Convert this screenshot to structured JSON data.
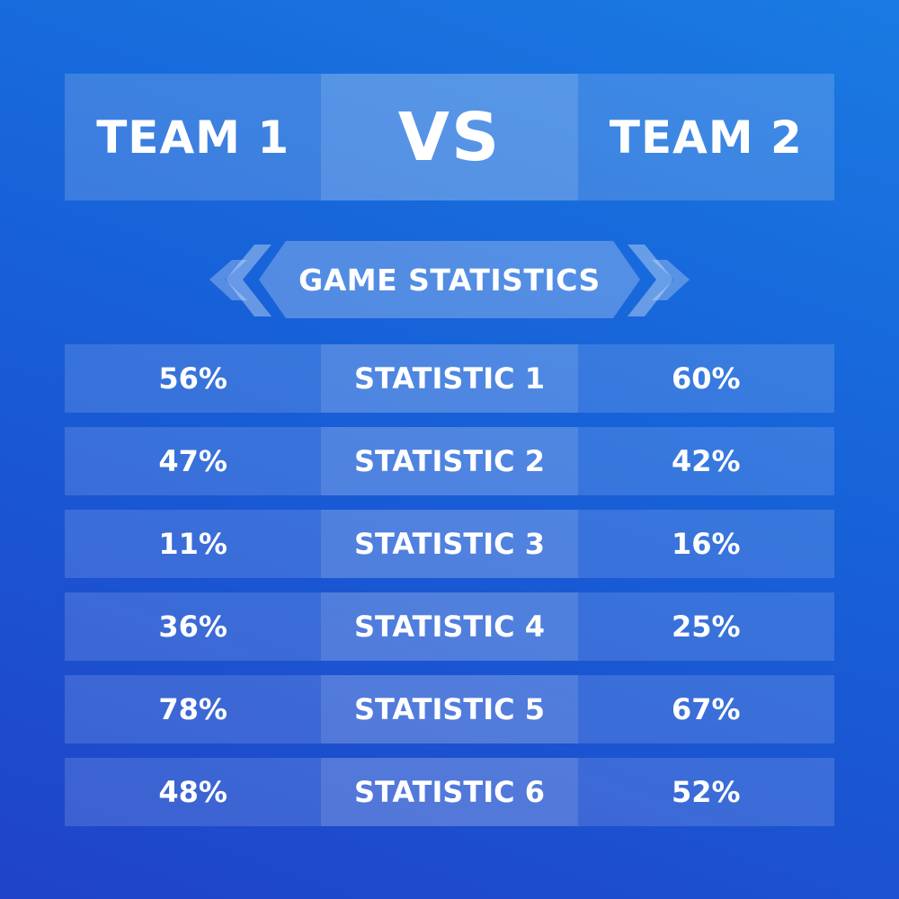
{
  "header": {
    "team1": "TEAM 1",
    "vs": "VS",
    "team2": "TEAM 2"
  },
  "banner": {
    "title": "GAME STATISTICS"
  },
  "stats": [
    {
      "team1": "56%",
      "label": "STATISTIC 1",
      "team2": "60%"
    },
    {
      "team1": "47%",
      "label": "STATISTIC 2",
      "team2": "42%"
    },
    {
      "team1": "11%",
      "label": "STATISTIC 3",
      "team2": "16%"
    },
    {
      "team1": "36%",
      "label": "STATISTIC 4",
      "team2": "25%"
    },
    {
      "team1": "78%",
      "label": "STATISTIC 5",
      "team2": "67%"
    },
    {
      "team1": "48%",
      "label": "STATISTIC 6",
      "team2": "52%"
    }
  ],
  "colors": {
    "background_top": "#1a7ae2",
    "background_bottom": "#2043c8"
  }
}
